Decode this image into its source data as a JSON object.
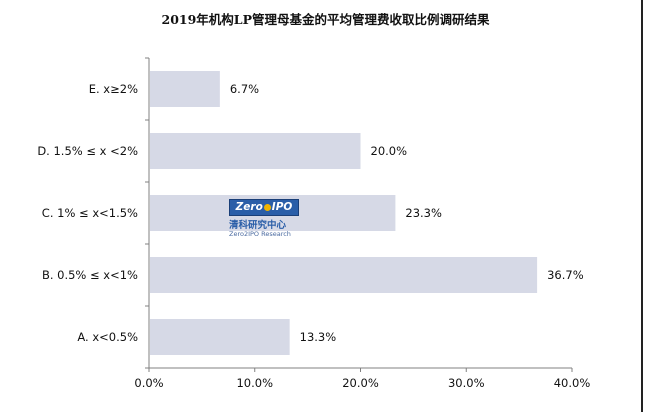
{
  "chart_data": {
    "type": "bar",
    "orientation": "horizontal",
    "title": "2019年机构LP管理母基金的平均管理费收取比例调研结果",
    "categories": [
      "E. x≥2%",
      "D. 1.5% ≤ x <2%",
      "C. 1% ≤ x<1.5%",
      "B. 0.5% ≤ x<1%",
      "A. x<0.5%"
    ],
    "values": [
      6.7,
      20.0,
      23.3,
      36.7,
      13.3
    ],
    "data_labels": [
      "6.7%",
      "20.0%",
      "23.3%",
      "36.7%",
      "13.3%"
    ],
    "xlim": [
      0,
      40
    ],
    "x_ticks": [
      0,
      10,
      20,
      30,
      40
    ],
    "x_tick_labels": [
      "0.0%",
      "10.0%",
      "20.0%",
      "30.0%",
      "40.0%"
    ],
    "grid": false,
    "bar_color": "#d6d9e6",
    "axis_color": "#808080"
  },
  "watermark": {
    "badge_left": "Zero",
    "badge_right": "IPO",
    "cn_text": "清科研究中心",
    "en_text": "Zero2IPO Research"
  }
}
